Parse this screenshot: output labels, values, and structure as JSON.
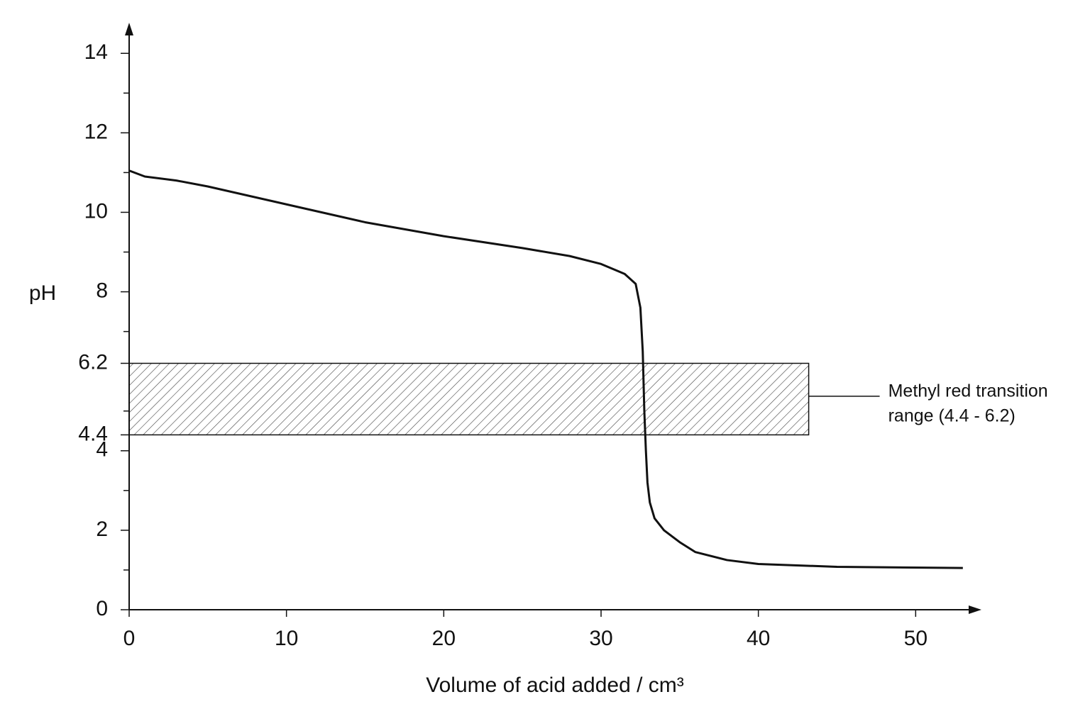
{
  "chart_data": {
    "type": "line",
    "x_label": "Volume of acid added / cm³",
    "y_label": "pH",
    "x": [
      0,
      1,
      3,
      5,
      10,
      15,
      20,
      25,
      28,
      30,
      31.5,
      32.2,
      32.5,
      32.65,
      32.75,
      32.85,
      32.95,
      33.1,
      33.4,
      34,
      35,
      36,
      38,
      40,
      45,
      53
    ],
    "series": [
      {
        "color": "#111111",
        "values": [
          11.05,
          10.9,
          10.8,
          10.65,
          10.2,
          9.75,
          9.4,
          9.1,
          8.9,
          8.7,
          8.45,
          8.2,
          7.6,
          6.5,
          5.0,
          4.0,
          3.2,
          2.7,
          2.3,
          2.0,
          1.7,
          1.45,
          1.25,
          1.15,
          1.08,
          1.05
        ]
      }
    ],
    "band": {
      "ymin": 4.4,
      "ymax": 6.2,
      "xmax": 43.2
    },
    "annotation": [
      "Methyl red transition",
      "range (4.4 - 6.2)"
    ],
    "xlim": [
      0,
      54
    ],
    "ylim": [
      0,
      14.7
    ],
    "xticks": [
      0,
      10,
      20,
      30,
      40,
      50
    ],
    "yticks": [
      0,
      2,
      4,
      4.4,
      6.2,
      8,
      10,
      12,
      14
    ],
    "minor_yticks": [
      1,
      3,
      5,
      7,
      9,
      11,
      13
    ]
  }
}
